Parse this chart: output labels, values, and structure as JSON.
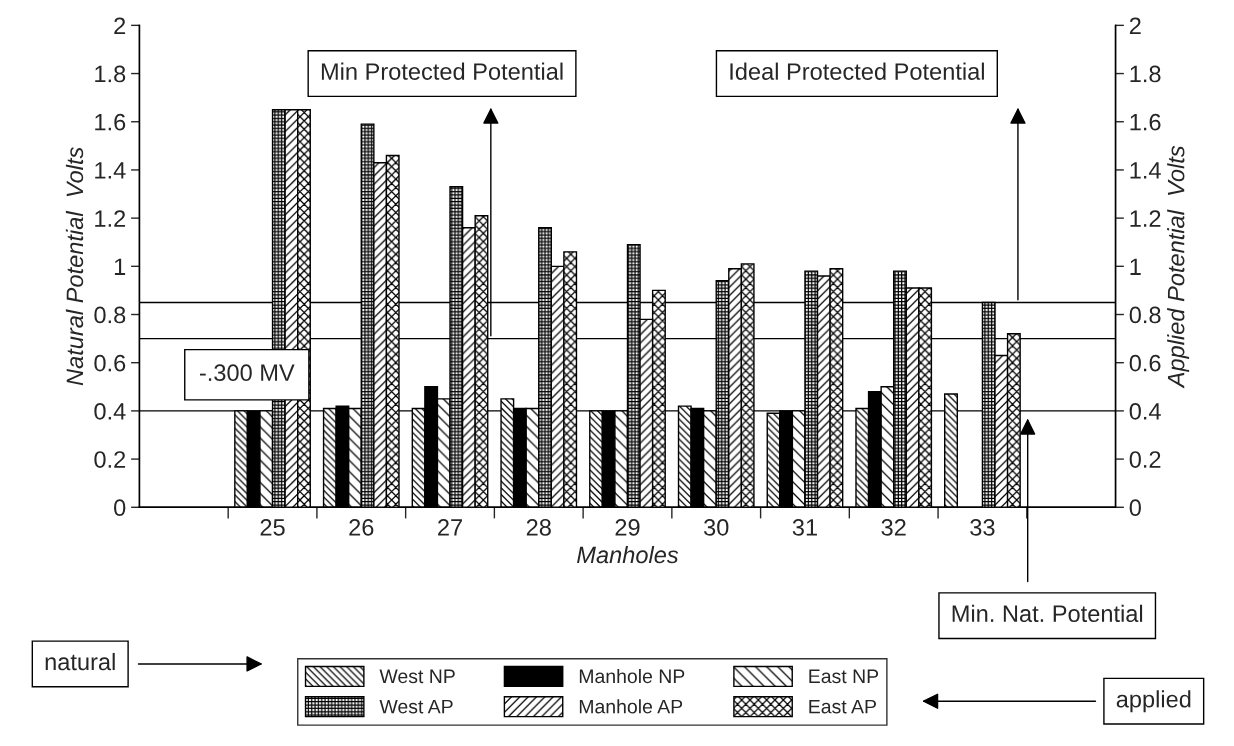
{
  "chart_data": {
    "type": "bar",
    "categories": [
      null,
      "25",
      "26",
      "27",
      "28",
      "29",
      "30",
      "31",
      "32",
      "33",
      null
    ],
    "series": [
      {
        "name": "West NP",
        "color": "#000000",
        "values": [
          null,
          0.4,
          0.41,
          0.41,
          0.45,
          0.4,
          0.42,
          0.39,
          0.41,
          0.47,
          null
        ]
      },
      {
        "name": "Manhole NP",
        "color": "#000000",
        "values": [
          null,
          0.4,
          0.42,
          0.5,
          0.41,
          0.4,
          0.41,
          0.4,
          0.48,
          null,
          null
        ]
      },
      {
        "name": "East NP",
        "color": "#000000",
        "values": [
          null,
          0.4,
          0.41,
          0.45,
          0.41,
          0.4,
          0.4,
          0.4,
          0.5,
          null,
          null
        ]
      },
      {
        "name": "West AP",
        "color": "#000000",
        "axis": "y2",
        "values": [
          null,
          1.65,
          1.59,
          1.33,
          1.16,
          1.09,
          0.94,
          0.98,
          0.98,
          0.85,
          null
        ]
      },
      {
        "name": "Manhole AP",
        "color": "#000000",
        "axis": "y2",
        "values": [
          null,
          1.65,
          1.43,
          1.16,
          1.0,
          0.78,
          0.99,
          0.96,
          0.91,
          0.63,
          null
        ]
      },
      {
        "name": "East AP",
        "color": "#000000",
        "axis": "y2",
        "values": [
          null,
          1.65,
          1.46,
          1.21,
          1.06,
          0.9,
          1.01,
          0.99,
          0.91,
          0.72,
          null
        ]
      }
    ],
    "xlabel": "Manholes",
    "ylabel": "Natural Potential  Volts",
    "y2label": "Applied Potential  Volts",
    "ylim": [
      0,
      2
    ],
    "yticks": [
      0,
      0.2,
      0.4,
      0.6,
      0.8,
      1,
      1.2,
      1.4,
      1.6,
      1.8,
      2
    ],
    "y2lim": [
      0,
      2
    ],
    "y2ticks": [
      0,
      0.2,
      0.4,
      0.6,
      0.8,
      1,
      1.2,
      1.4,
      1.6,
      1.8,
      2
    ],
    "ref_lines": [
      {
        "axis": "y",
        "value": 0.85,
        "color": "#000000"
      },
      {
        "axis": "y",
        "value": 0.7,
        "color": "#000000"
      },
      {
        "axis": "y",
        "value": 0.4,
        "color": "#000000"
      }
    ],
    "annotations": [
      "Min Protected Potential",
      "Ideal Protected Potential",
      "-.300 MV",
      "Min. Nat. Potential",
      "natural",
      "applied"
    ],
    "legend": "bottom",
    "grid": false
  }
}
